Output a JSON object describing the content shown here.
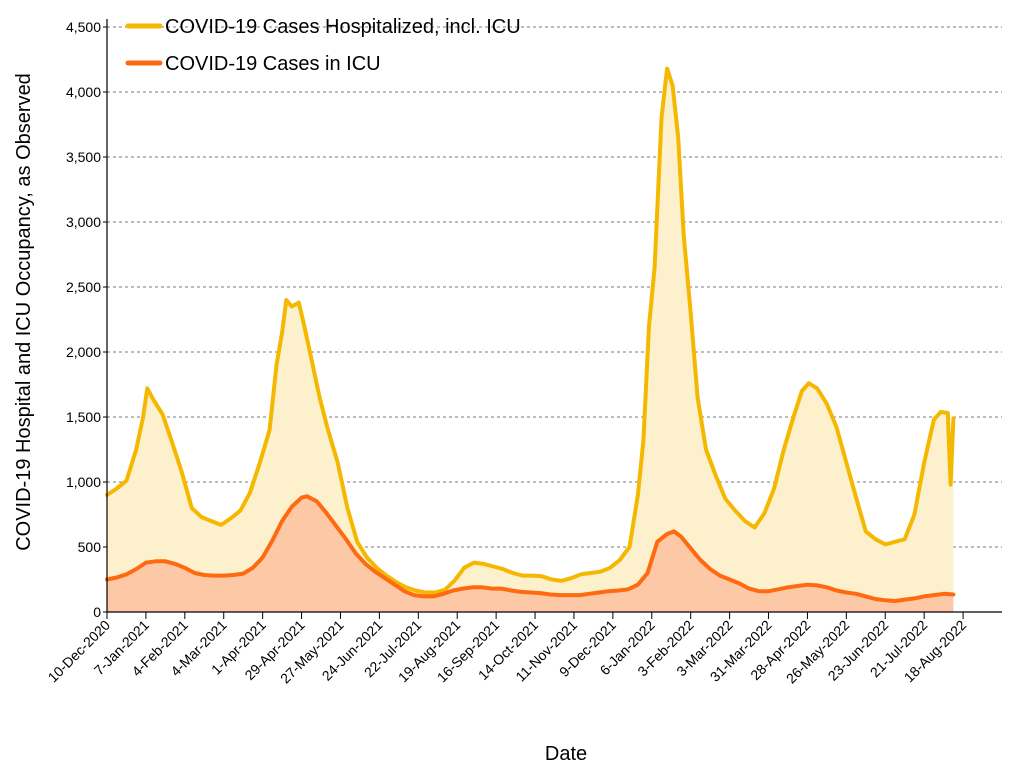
{
  "chart_data": {
    "type": "area",
    "title": "",
    "xlabel": "Date",
    "ylabel": "COVID-19 Hospital and ICU Occupancy, as Observed",
    "ylim": [
      0,
      4500
    ],
    "yticks": [
      0,
      500,
      1000,
      1500,
      2000,
      2500,
      3000,
      3500,
      4000,
      4500
    ],
    "ytick_labels": [
      "0",
      "500",
      "1,000",
      "1,500",
      "2,000",
      "2,500",
      "3,000",
      "3,500",
      "4,000",
      "4,500"
    ],
    "xlim": [
      "2020-12-10",
      "2022-09-15"
    ],
    "xtick_labels": [
      "10-Dec-2020",
      "7-Jan-2021",
      "4-Feb-2021",
      "4-Mar-2021",
      "1-Apr-2021",
      "29-Apr-2021",
      "27-May-2021",
      "24-Jun-2021",
      "22-Jul-2021",
      "19-Aug-2021",
      "16-Sep-2021",
      "14-Oct-2021",
      "11-Nov-2021",
      "9-Dec-2021",
      "6-Jan-2022",
      "3-Feb-2022",
      "3-Mar-2022",
      "31-Mar-2022",
      "28-Apr-2022",
      "26-May-2022",
      "23-Jun-2022",
      "21-Jul-2022",
      "18-Aug-2022"
    ],
    "xtick_dates": [
      "2020-12-10",
      "2021-01-07",
      "2021-02-04",
      "2021-03-04",
      "2021-04-01",
      "2021-04-29",
      "2021-05-27",
      "2021-06-24",
      "2021-07-22",
      "2021-08-19",
      "2021-09-16",
      "2021-10-14",
      "2021-11-11",
      "2021-12-09",
      "2022-01-06",
      "2022-02-03",
      "2022-03-03",
      "2022-03-31",
      "2022-04-28",
      "2022-05-26",
      "2022-06-23",
      "2022-07-21",
      "2022-08-18"
    ],
    "grid": "horizontal dashed",
    "legend_position": "top-left",
    "series": [
      {
        "name": "COVID-19 Cases Hospitalized, incl. ICU",
        "line_color": "#F5B800",
        "fill_color": "#FDF0CC",
        "points": [
          [
            "2020-12-10",
            900
          ],
          [
            "2020-12-17",
            950
          ],
          [
            "2020-12-24",
            1010
          ],
          [
            "2020-12-31",
            1250
          ],
          [
            "2021-01-05",
            1500
          ],
          [
            "2021-01-08",
            1720
          ],
          [
            "2021-01-12",
            1640
          ],
          [
            "2021-01-19",
            1520
          ],
          [
            "2021-01-26",
            1300
          ],
          [
            "2021-02-02",
            1070
          ],
          [
            "2021-02-09",
            800
          ],
          [
            "2021-02-16",
            730
          ],
          [
            "2021-02-23",
            700
          ],
          [
            "2021-03-02",
            670
          ],
          [
            "2021-03-09",
            720
          ],
          [
            "2021-03-16",
            780
          ],
          [
            "2021-03-23",
            920
          ],
          [
            "2021-03-30",
            1150
          ],
          [
            "2021-04-06",
            1400
          ],
          [
            "2021-04-11",
            1900
          ],
          [
            "2021-04-15",
            2150
          ],
          [
            "2021-04-18",
            2400
          ],
          [
            "2021-04-22",
            2350
          ],
          [
            "2021-04-27",
            2380
          ],
          [
            "2021-05-01",
            2200
          ],
          [
            "2021-05-06",
            1950
          ],
          [
            "2021-05-12",
            1650
          ],
          [
            "2021-05-18",
            1400
          ],
          [
            "2021-05-25",
            1150
          ],
          [
            "2021-06-01",
            800
          ],
          [
            "2021-06-08",
            540
          ],
          [
            "2021-06-15",
            420
          ],
          [
            "2021-06-22",
            340
          ],
          [
            "2021-06-29",
            280
          ],
          [
            "2021-07-06",
            230
          ],
          [
            "2021-07-13",
            190
          ],
          [
            "2021-07-20",
            165
          ],
          [
            "2021-07-27",
            150
          ],
          [
            "2021-08-03",
            150
          ],
          [
            "2021-08-10",
            170
          ],
          [
            "2021-08-17",
            240
          ],
          [
            "2021-08-24",
            340
          ],
          [
            "2021-08-31",
            380
          ],
          [
            "2021-09-07",
            370
          ],
          [
            "2021-09-14",
            350
          ],
          [
            "2021-09-21",
            330
          ],
          [
            "2021-09-28",
            300
          ],
          [
            "2021-10-05",
            280
          ],
          [
            "2021-10-12",
            280
          ],
          [
            "2021-10-19",
            275
          ],
          [
            "2021-10-26",
            250
          ],
          [
            "2021-11-02",
            240
          ],
          [
            "2021-11-09",
            260
          ],
          [
            "2021-11-16",
            290
          ],
          [
            "2021-11-23",
            300
          ],
          [
            "2021-11-30",
            310
          ],
          [
            "2021-12-07",
            340
          ],
          [
            "2021-12-14",
            400
          ],
          [
            "2021-12-21",
            500
          ],
          [
            "2021-12-27",
            900
          ],
          [
            "2021-12-31",
            1320
          ],
          [
            "2022-01-04",
            2200
          ],
          [
            "2022-01-08",
            2650
          ],
          [
            "2022-01-13",
            3800
          ],
          [
            "2022-01-17",
            4180
          ],
          [
            "2022-01-21",
            4050
          ],
          [
            "2022-01-25",
            3650
          ],
          [
            "2022-01-29",
            2900
          ],
          [
            "2022-02-03",
            2300
          ],
          [
            "2022-02-08",
            1650
          ],
          [
            "2022-02-14",
            1250
          ],
          [
            "2022-02-21",
            1050
          ],
          [
            "2022-02-28",
            870
          ],
          [
            "2022-03-07",
            780
          ],
          [
            "2022-03-14",
            700
          ],
          [
            "2022-03-21",
            650
          ],
          [
            "2022-03-28",
            760
          ],
          [
            "2022-04-04",
            950
          ],
          [
            "2022-04-11",
            1250
          ],
          [
            "2022-04-18",
            1500
          ],
          [
            "2022-04-24",
            1700
          ],
          [
            "2022-04-29",
            1760
          ],
          [
            "2022-05-05",
            1720
          ],
          [
            "2022-05-12",
            1600
          ],
          [
            "2022-05-19",
            1420
          ],
          [
            "2022-05-26",
            1150
          ],
          [
            "2022-06-02",
            880
          ],
          [
            "2022-06-09",
            620
          ],
          [
            "2022-06-16",
            560
          ],
          [
            "2022-06-23",
            520
          ],
          [
            "2022-06-30",
            540
          ],
          [
            "2022-07-07",
            560
          ],
          [
            "2022-07-14",
            750
          ],
          [
            "2022-07-21",
            1150
          ],
          [
            "2022-07-28",
            1480
          ],
          [
            "2022-08-02",
            1540
          ],
          [
            "2022-08-07",
            1530
          ],
          [
            "2022-08-09",
            980
          ],
          [
            "2022-08-11",
            1490
          ]
        ]
      },
      {
        "name": "COVID-19 Cases in ICU",
        "line_color": "#FF6A10",
        "fill_color": "#FDC8A6",
        "points": [
          [
            "2020-12-10",
            250
          ],
          [
            "2020-12-17",
            265
          ],
          [
            "2020-12-24",
            290
          ],
          [
            "2020-12-31",
            330
          ],
          [
            "2021-01-07",
            380
          ],
          [
            "2021-01-14",
            390
          ],
          [
            "2021-01-21",
            390
          ],
          [
            "2021-01-28",
            370
          ],
          [
            "2021-02-04",
            340
          ],
          [
            "2021-02-11",
            300
          ],
          [
            "2021-02-18",
            285
          ],
          [
            "2021-02-25",
            280
          ],
          [
            "2021-03-04",
            280
          ],
          [
            "2021-03-11",
            285
          ],
          [
            "2021-03-18",
            295
          ],
          [
            "2021-03-25",
            340
          ],
          [
            "2021-04-01",
            420
          ],
          [
            "2021-04-08",
            550
          ],
          [
            "2021-04-15",
            700
          ],
          [
            "2021-04-22",
            810
          ],
          [
            "2021-04-29",
            880
          ],
          [
            "2021-05-03",
            890
          ],
          [
            "2021-05-10",
            850
          ],
          [
            "2021-05-17",
            760
          ],
          [
            "2021-05-24",
            660
          ],
          [
            "2021-05-31",
            560
          ],
          [
            "2021-06-07",
            450
          ],
          [
            "2021-06-14",
            370
          ],
          [
            "2021-06-21",
            310
          ],
          [
            "2021-06-28",
            260
          ],
          [
            "2021-07-05",
            210
          ],
          [
            "2021-07-12",
            160
          ],
          [
            "2021-07-19",
            130
          ],
          [
            "2021-07-26",
            120
          ],
          [
            "2021-08-02",
            120
          ],
          [
            "2021-08-09",
            140
          ],
          [
            "2021-08-16",
            165
          ],
          [
            "2021-08-23",
            180
          ],
          [
            "2021-08-30",
            190
          ],
          [
            "2021-09-06",
            190
          ],
          [
            "2021-09-13",
            180
          ],
          [
            "2021-09-20",
            180
          ],
          [
            "2021-09-27",
            165
          ],
          [
            "2021-10-04",
            155
          ],
          [
            "2021-10-11",
            150
          ],
          [
            "2021-10-18",
            145
          ],
          [
            "2021-10-25",
            135
          ],
          [
            "2021-11-01",
            130
          ],
          [
            "2021-11-08",
            130
          ],
          [
            "2021-11-15",
            130
          ],
          [
            "2021-11-22",
            140
          ],
          [
            "2021-11-29",
            150
          ],
          [
            "2021-12-06",
            160
          ],
          [
            "2021-12-13",
            165
          ],
          [
            "2021-12-20",
            175
          ],
          [
            "2021-12-27",
            210
          ],
          [
            "2022-01-03",
            300
          ],
          [
            "2022-01-10",
            540
          ],
          [
            "2022-01-17",
            600
          ],
          [
            "2022-01-22",
            620
          ],
          [
            "2022-01-27",
            580
          ],
          [
            "2022-02-03",
            490
          ],
          [
            "2022-02-10",
            400
          ],
          [
            "2022-02-17",
            330
          ],
          [
            "2022-02-24",
            280
          ],
          [
            "2022-03-03",
            250
          ],
          [
            "2022-03-10",
            220
          ],
          [
            "2022-03-17",
            180
          ],
          [
            "2022-03-24",
            160
          ],
          [
            "2022-03-31",
            160
          ],
          [
            "2022-04-07",
            175
          ],
          [
            "2022-04-14",
            190
          ],
          [
            "2022-04-21",
            200
          ],
          [
            "2022-04-28",
            210
          ],
          [
            "2022-05-05",
            205
          ],
          [
            "2022-05-12",
            190
          ],
          [
            "2022-05-19",
            165
          ],
          [
            "2022-05-26",
            150
          ],
          [
            "2022-06-02",
            140
          ],
          [
            "2022-06-09",
            120
          ],
          [
            "2022-06-16",
            100
          ],
          [
            "2022-06-23",
            90
          ],
          [
            "2022-06-30",
            85
          ],
          [
            "2022-07-07",
            95
          ],
          [
            "2022-07-14",
            105
          ],
          [
            "2022-07-21",
            120
          ],
          [
            "2022-07-28",
            130
          ],
          [
            "2022-08-04",
            140
          ],
          [
            "2022-08-11",
            135
          ]
        ]
      }
    ]
  }
}
